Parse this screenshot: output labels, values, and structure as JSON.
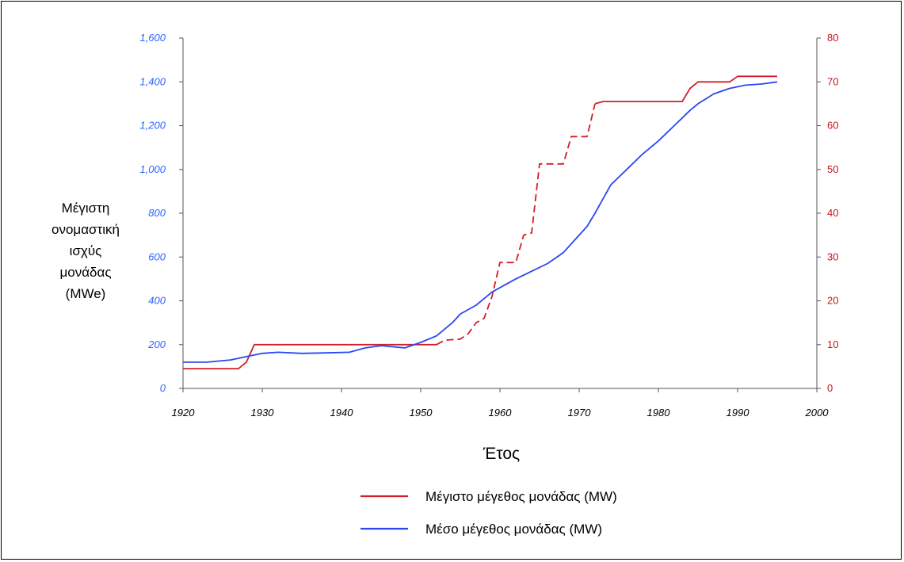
{
  "chart_data": {
    "type": "line",
    "title": "",
    "xlabel": "Έτος",
    "ylabel_lines": [
      "Μέγιστη",
      "ονομαστική",
      "ισχύς",
      "μονάδας",
      "(MWe)"
    ],
    "xlim": [
      1920,
      2000
    ],
    "x_ticks": [
      "1920",
      "1930",
      "1940",
      "1950",
      "1960",
      "1970",
      "1980",
      "1990",
      "2000"
    ],
    "ylim_left": [
      0,
      1600
    ],
    "y_ticks_left": [
      "0",
      "200",
      "400",
      "600",
      "800",
      "1,000",
      "1,200",
      "1,400",
      "1,600"
    ],
    "ylim_right": [
      0,
      80
    ],
    "y_ticks_right": [
      "0",
      "10",
      "20",
      "30",
      "40",
      "50",
      "60",
      "70",
      "80"
    ],
    "grid": false,
    "legend_position": "bottom-center",
    "series": [
      {
        "name": "Μέγιστο μέγεθος μονάδας (MW)",
        "axis": "left",
        "color": "#d21f26",
        "segments": [
          {
            "style": "solid",
            "points": [
              [
                1920,
                90
              ],
              [
                1927,
                90
              ],
              [
                1928,
                120
              ],
              [
                1929,
                200
              ],
              [
                1952,
                200
              ]
            ]
          },
          {
            "style": "dashed",
            "points": [
              [
                1952,
                200
              ],
              [
                1953,
                220
              ],
              [
                1955,
                225
              ],
              [
                1956,
                250
              ],
              [
                1957,
                300
              ],
              [
                1958,
                320
              ],
              [
                1959,
                420
              ],
              [
                1960,
                575
              ],
              [
                1962,
                575
              ],
              [
                1963,
                700
              ],
              [
                1964,
                710
              ],
              [
                1965,
                1025
              ],
              [
                1968,
                1025
              ],
              [
                1969,
                1150
              ],
              [
                1971,
                1150
              ],
              [
                1972,
                1300
              ]
            ]
          },
          {
            "style": "solid",
            "points": [
              [
                1972,
                1300
              ],
              [
                1973,
                1310
              ],
              [
                1983,
                1310
              ],
              [
                1984,
                1370
              ],
              [
                1985,
                1400
              ],
              [
                1989,
                1400
              ],
              [
                1990,
                1425
              ],
              [
                1995,
                1425
              ]
            ]
          }
        ]
      },
      {
        "name": "Μέσο μέγεθος μονάδας (MW)",
        "axis": "left",
        "color": "#2a48ef",
        "segments": [
          {
            "style": "solid",
            "points": [
              [
                1920,
                120
              ],
              [
                1923,
                120
              ],
              [
                1926,
                130
              ],
              [
                1928,
                145
              ],
              [
                1930,
                160
              ],
              [
                1932,
                165
              ],
              [
                1935,
                160
              ],
              [
                1938,
                162
              ],
              [
                1941,
                165
              ],
              [
                1943,
                185
              ],
              [
                1945,
                195
              ],
              [
                1948,
                185
              ],
              [
                1950,
                210
              ],
              [
                1952,
                240
              ],
              [
                1954,
                300
              ],
              [
                1955,
                340
              ],
              [
                1957,
                380
              ],
              [
                1959,
                440
              ],
              [
                1960,
                460
              ],
              [
                1962,
                500
              ],
              [
                1964,
                535
              ],
              [
                1966,
                570
              ],
              [
                1968,
                620
              ],
              [
                1970,
                700
              ],
              [
                1971,
                740
              ],
              [
                1972,
                800
              ],
              [
                1974,
                930
              ],
              [
                1976,
                1000
              ],
              [
                1978,
                1070
              ],
              [
                1980,
                1130
              ],
              [
                1982,
                1200
              ],
              [
                1984,
                1270
              ],
              [
                1985,
                1300
              ],
              [
                1987,
                1345
              ],
              [
                1989,
                1370
              ],
              [
                1991,
                1385
              ],
              [
                1993,
                1390
              ],
              [
                1995,
                1400
              ]
            ]
          }
        ]
      }
    ]
  },
  "legend": {
    "items": [
      {
        "label": "Μέγιστο μέγεθος μονάδας (MW)",
        "color": "#d21f26"
      },
      {
        "label": "Μέσο μέγεθος μονάδας (MW)",
        "color": "#2a48ef"
      }
    ]
  }
}
